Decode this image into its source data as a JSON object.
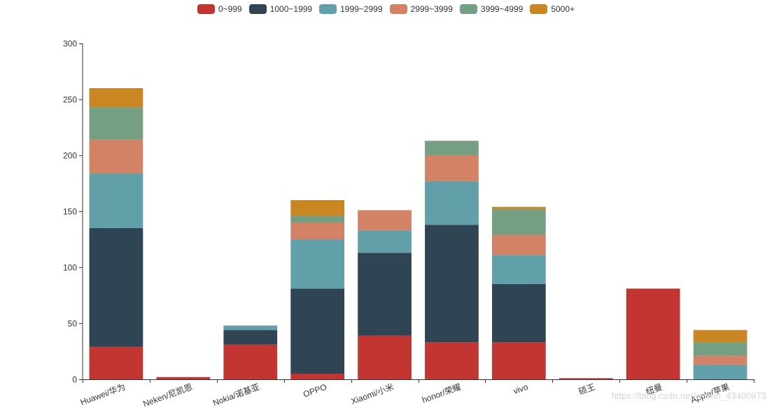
{
  "chart_data": {
    "type": "bar",
    "stacked": true,
    "categories": [
      "Huawei/华为",
      "Neken/尼凯恩",
      "Nokia/诺基亚",
      "OPPO",
      "Xiaomi/小米",
      "honor/荣耀",
      "vivo",
      "硕王",
      "纽曼",
      "Apple/苹果"
    ],
    "series": [
      {
        "name": "0~999",
        "color": "#c23531",
        "values": [
          29,
          2,
          31,
          5,
          39,
          33,
          33,
          1,
          81,
          0
        ]
      },
      {
        "name": "1000~1999",
        "color": "#2f4554",
        "values": [
          106,
          0,
          13,
          76,
          74,
          105,
          52,
          0,
          0,
          0
        ]
      },
      {
        "name": "1999~2999",
        "color": "#61a0a8",
        "values": [
          49,
          0,
          4,
          44,
          20,
          39,
          26,
          0,
          0,
          13
        ]
      },
      {
        "name": "2999~3999",
        "color": "#d48265",
        "values": [
          30,
          0,
          0,
          15,
          18,
          23,
          18,
          0,
          0,
          8
        ]
      },
      {
        "name": "3999~4999",
        "color": "#749f83",
        "values": [
          29,
          0,
          0,
          6,
          0,
          13,
          23,
          0,
          0,
          12
        ]
      },
      {
        "name": "5000+",
        "color": "#ca8622",
        "values": [
          17,
          0,
          0,
          14,
          0,
          0,
          2,
          0,
          0,
          11
        ]
      }
    ],
    "ylim": [
      0,
      300
    ],
    "yticks": [
      0,
      50,
      100,
      150,
      200,
      250,
      300
    ],
    "legend_position": "top-center",
    "grid": false
  },
  "watermark": "https://blog.csdn.net/weixin_43400973"
}
